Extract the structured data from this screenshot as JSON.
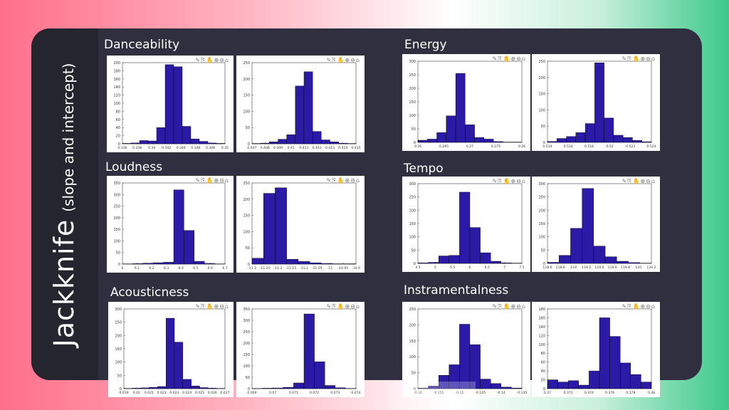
{
  "slide": {
    "title_main": "Jackknife",
    "title_sub": "(slope and intercept)"
  },
  "colors": {
    "bar": "#2a1aa6",
    "bar_edge": "#000000",
    "card": "#2f2f3f",
    "band": "#25252f"
  },
  "toolbar_icons": "✎⎘✋⊕⊖⌂",
  "features": [
    {
      "id": "danceability",
      "label": "Danceability"
    },
    {
      "id": "energy",
      "label": "Energy"
    },
    {
      "id": "loudness",
      "label": "Loudness"
    },
    {
      "id": "tempo",
      "label": "Tempo"
    },
    {
      "id": "acousticness",
      "label": "Acousticness"
    },
    {
      "id": "instramentalness",
      "label": "Instramentalness"
    }
  ],
  "chart_data": [
    {
      "feature": "Danceability",
      "param": "slope",
      "type": "bar",
      "xticks": [
        "0.336",
        "0.338",
        "0.34",
        "0.342",
        "0.344",
        "0.346",
        "0.348",
        "0.35"
      ],
      "yticks": [
        "0",
        "20",
        "40",
        "60",
        "80",
        "100",
        "120",
        "140",
        "160",
        "180",
        "200"
      ],
      "ylim": [
        0,
        200
      ],
      "values": [
        1,
        2,
        8,
        7,
        40,
        195,
        190,
        43,
        12,
        6,
        2,
        1
      ]
    },
    {
      "feature": "Danceability",
      "param": "intercept",
      "type": "bar",
      "xticks": [
        "0.407",
        "0.408",
        "0.409",
        "0.41",
        "0.411",
        "0.412",
        "0.413",
        "0.414",
        "0.415"
      ],
      "yticks": [
        "0",
        "50",
        "100",
        "150",
        "200",
        "250"
      ],
      "ylim": [
        0,
        250
      ],
      "values": [
        1,
        2,
        6,
        14,
        28,
        178,
        222,
        38,
        12,
        6,
        2,
        1
      ]
    },
    {
      "feature": "Energy",
      "param": "slope",
      "type": "bar",
      "xticks": [
        "0.26",
        "0.265",
        "0.27",
        "0.275",
        "0.28"
      ],
      "yticks": [
        "0",
        "50",
        "100",
        "150",
        "200",
        "250",
        "300"
      ],
      "ylim": [
        0,
        300
      ],
      "values": [
        8,
        12,
        36,
        98,
        255,
        65,
        18,
        12,
        3,
        1,
        1
      ]
    },
    {
      "feature": "Energy",
      "param": "intercept",
      "type": "bar",
      "xticks": [
        "0.514",
        "0.516",
        "0.518",
        "0.52",
        "0.522",
        "0.524"
      ],
      "yticks": [
        "0",
        "50",
        "100",
        "150",
        "200",
        "250"
      ],
      "ylim": [
        0,
        250
      ],
      "values": [
        3,
        12,
        18,
        30,
        58,
        245,
        75,
        22,
        15,
        6,
        2
      ]
    },
    {
      "feature": "Loudness",
      "param": "slope",
      "type": "bar",
      "xticks": [
        "6",
        "6.1",
        "6.2",
        "6.3",
        "6.4",
        "6.5",
        "6.6",
        "6.7"
      ],
      "yticks": [
        "0",
        "50",
        "100",
        "150",
        "200",
        "250",
        "300",
        "350"
      ],
      "ylim": [
        0,
        350
      ],
      "values": [
        1,
        2,
        4,
        6,
        8,
        320,
        145,
        12,
        3,
        1
      ]
    },
    {
      "feature": "Loudness",
      "param": "intercept",
      "type": "bar",
      "xticks": [
        "-11.3",
        "-11.25",
        "-11.2",
        "-11.15",
        "-11.1",
        "-11.05",
        "-11",
        "-10.95",
        "-10.9"
      ],
      "yticks": [
        "0",
        "50",
        "100",
        "150",
        "200",
        "250"
      ],
      "ylim": [
        0,
        250
      ],
      "values": [
        18,
        218,
        235,
        15,
        8,
        4,
        2,
        1,
        1
      ]
    },
    {
      "feature": "Tempo",
      "param": "slope",
      "type": "bar",
      "xticks": [
        "4.5",
        "5",
        "5.5",
        "6",
        "6.5",
        "7",
        "7.5"
      ],
      "yticks": [
        "0",
        "50",
        "100",
        "150",
        "200",
        "250",
        "300"
      ],
      "ylim": [
        0,
        300
      ],
      "values": [
        2,
        4,
        28,
        30,
        268,
        135,
        40,
        8,
        2,
        1
      ]
    },
    {
      "feature": "Tempo",
      "param": "intercept",
      "type": "bar",
      "xticks": [
        "118.6",
        "118.8",
        "119",
        "119.2",
        "119.4",
        "119.6",
        "119.8",
        "120",
        "120.2"
      ],
      "yticks": [
        "0",
        "50",
        "100",
        "150",
        "200",
        "250",
        "300"
      ],
      "ylim": [
        0,
        300
      ],
      "values": [
        4,
        30,
        132,
        282,
        65,
        25,
        8,
        3,
        1
      ]
    },
    {
      "feature": "Acousticness",
      "param": "slope",
      "type": "bar",
      "xticks": [
        "0.019",
        "0.02",
        "0.021",
        "0.022",
        "0.023",
        "0.024",
        "0.025",
        "0.026",
        "0.027"
      ],
      "yticks": [
        "0",
        "50",
        "100",
        "150",
        "200",
        "250",
        "300"
      ],
      "ylim": [
        0,
        300
      ],
      "values": [
        1,
        2,
        3,
        5,
        8,
        265,
        175,
        35,
        10,
        4,
        2,
        1
      ]
    },
    {
      "feature": "Acousticness",
      "param": "intercept",
      "type": "bar",
      "xticks": [
        "0.069",
        "0.07",
        "0.071",
        "0.072",
        "0.073",
        "0.074"
      ],
      "yticks": [
        "0",
        "50",
        "100",
        "150",
        "200",
        "250",
        "300",
        "350"
      ],
      "ylim": [
        0,
        350
      ],
      "values": [
        1,
        2,
        3,
        6,
        25,
        328,
        118,
        14,
        4,
        1
      ]
    },
    {
      "feature": "Instramentalness",
      "param": "slope",
      "type": "bar",
      "xticks": [
        "-0.16",
        "-0.155",
        "-0.15",
        "-0.145",
        "-0.14",
        "-0.135"
      ],
      "yticks": [
        "0",
        "50",
        "100",
        "150",
        "200",
        "250"
      ],
      "ylim": [
        0,
        250
      ],
      "values": [
        2,
        8,
        42,
        75,
        202,
        138,
        30,
        16,
        5,
        2
      ]
    },
    {
      "feature": "Instramentalness",
      "param": "intercept",
      "type": "bar",
      "xticks": [
        "0.37",
        "0.372",
        "0.374",
        "0.376",
        "0.378",
        "0.38"
      ],
      "yticks": [
        "0",
        "20",
        "40",
        "60",
        "80",
        "100",
        "120",
        "140",
        "160",
        "180"
      ],
      "ylim": [
        0,
        180
      ],
      "values": [
        20,
        15,
        18,
        8,
        40,
        160,
        118,
        58,
        32,
        15
      ]
    }
  ]
}
